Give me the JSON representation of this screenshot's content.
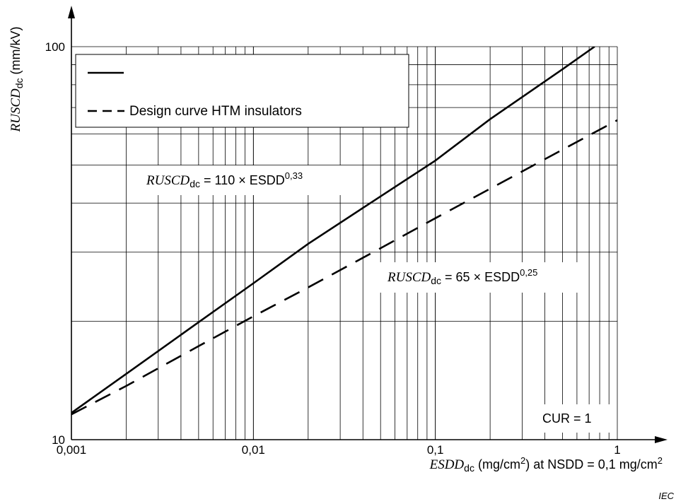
{
  "chart_data": {
    "type": "line",
    "x_scale": "log",
    "y_scale": "log",
    "xlim": [
      0.001,
      1
    ],
    "ylim": [
      10,
      100
    ],
    "grid": true,
    "legend_placement": "top-left",
    "x_tick_labels": [
      "0,001",
      "0,01",
      "0,1",
      "1"
    ],
    "y_tick_labels": [
      "10",
      "100"
    ],
    "ylabel": {
      "var": "RUSCD",
      "sub": "dc",
      "rest": " (mm/kV)"
    },
    "xlabel": {
      "var": "ESDD",
      "sub": "dc",
      "part1": " (mg/cm",
      "sup1": "2",
      "part2": ") at NSDD = 0,1 mg/cm",
      "sup2": "2"
    },
    "series": [
      {
        "style": "solid",
        "coef": 110,
        "exp": 0.33,
        "x": [
          0.001,
          0.002,
          0.005,
          0.01,
          0.02,
          0.05,
          0.1,
          0.2,
          0.5,
          0.75
        ],
        "y": [
          11.7,
          14.7,
          19.9,
          25.0,
          31.5,
          41.6,
          51.3,
          65.4,
          87.6,
          100
        ]
      },
      {
        "name": "Design curve HTM insulators",
        "style": "dashed",
        "coef": 65,
        "exp": 0.25,
        "x": [
          0.001,
          0.002,
          0.005,
          0.01,
          0.02,
          0.05,
          0.1,
          0.2,
          0.5,
          1
        ],
        "y": [
          11.6,
          13.7,
          17.3,
          20.6,
          24.4,
          30.7,
          36.6,
          43.5,
          54.7,
          65
        ]
      }
    ],
    "annotations": [
      {
        "var": "RUSCD",
        "sub": "dc",
        "text": " = 110 × ESDD",
        "sup": "0,33"
      },
      {
        "var": "RUSCD",
        "sub": "dc",
        "text": " = 65 × ESDD",
        "sup": "0,25"
      },
      {
        "text": "CUR = 1"
      }
    ]
  },
  "watermark": "IEC",
  "colors": {
    "line": "#000000",
    "grid": "#000000",
    "background": "#ffffff"
  }
}
